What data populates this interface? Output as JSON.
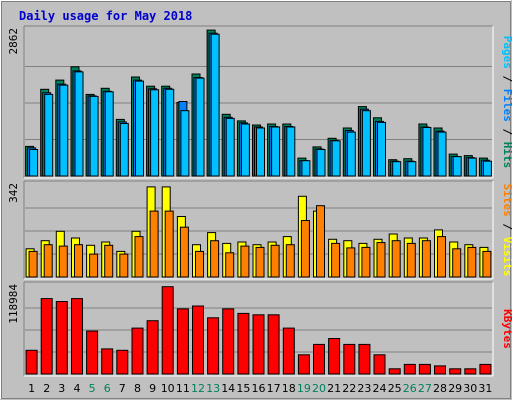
{
  "chart_data": {
    "type": "bar",
    "title": "Daily usage for May 2018",
    "categories": [
      "1",
      "2",
      "3",
      "4",
      "5",
      "6",
      "7",
      "8",
      "9",
      "10",
      "11",
      "12",
      "13",
      "14",
      "15",
      "16",
      "17",
      "18",
      "19",
      "20",
      "21",
      "22",
      "23",
      "24",
      "25",
      "26",
      "27",
      "28",
      "29",
      "30",
      "31"
    ],
    "weekend_days": [
      "5",
      "6",
      "12",
      "13",
      "19",
      "20",
      "26",
      "27"
    ],
    "colors": {
      "title": "#0000cc",
      "hits": "#00805c",
      "files": "#0080ff",
      "pages": "#00c0ff",
      "visits": "#ffff00",
      "sites": "#ff8000",
      "kbytes": "#ff0000",
      "weekday_label": "#000000",
      "weekend_label": "#00805c"
    },
    "panels": [
      {
        "id": "hits-files-pages",
        "max_label": "2862",
        "ymax": 2862,
        "side_label_parts": [
          {
            "text": "Pages",
            "color": "#00c0ff"
          },
          {
            "text": " / ",
            "color": "#000000"
          },
          {
            "text": "Files",
            "color": "#0080ff"
          },
          {
            "text": " / ",
            "color": "#000000"
          },
          {
            "text": "Hits",
            "color": "#00805c"
          }
        ],
        "series": [
          {
            "name": "Hits",
            "color": "#00805c",
            "values": [
              580,
              1700,
              1880,
              2140,
              1600,
              1720,
              1110,
              1940,
              1760,
              1760,
              1440,
              2000,
              2860,
              1210,
              1080,
              1000,
              1020,
              1020,
              350,
              570,
              740,
              940,
              1360,
              1140,
              320,
              340,
              1020,
              940,
              430,
              400,
              350
            ]
          },
          {
            "name": "Files",
            "color": "#0080ff",
            "values": [
              550,
              1630,
              1800,
              2060,
              1570,
              1660,
              1060,
              1880,
              1710,
              1720,
              1460,
              1930,
              2800,
              1150,
              1040,
              960,
              970,
              970,
              300,
              530,
              700,
              890,
              1310,
              1070,
              290,
              290,
              960,
              880,
              380,
              360,
              310
            ]
          },
          {
            "name": "Pages",
            "color": "#00c0ff",
            "values": [
              520,
              1600,
              1780,
              2040,
              1560,
              1650,
              1030,
              1860,
              1690,
              1700,
              1280,
              1920,
              2780,
              1130,
              1020,
              940,
              960,
              960,
              300,
              520,
              690,
              860,
              1280,
              1050,
              280,
              280,
              950,
              860,
              380,
              350,
              290
            ]
          }
        ]
      },
      {
        "id": "visits-sites",
        "max_label": "342",
        "ymax": 342,
        "side_label_parts": [
          {
            "text": "Sites",
            "color": "#ff8000"
          },
          {
            "text": " / ",
            "color": "#000000"
          },
          {
            "text": "Visits",
            "color": "#ffff00"
          }
        ],
        "series": [
          {
            "name": "Visits",
            "color": "#ffff00",
            "values": [
              105,
              135,
              170,
              145,
              118,
              130,
              95,
              170,
              335,
              335,
              225,
              120,
              165,
              125,
              130,
              120,
              130,
              150,
              300,
              245,
              140,
              135,
              125,
              140,
              160,
              145,
              145,
              175,
              130,
              120,
              110
            ]
          },
          {
            "name": "Sites",
            "color": "#ff8000",
            "values": [
              95,
              120,
              115,
              120,
              85,
              118,
              85,
              150,
              245,
              245,
              185,
              95,
              135,
              90,
              115,
              110,
              118,
              120,
              210,
              265,
              125,
              108,
              110,
              128,
              135,
              125,
              135,
              150,
              105,
              110,
              95
            ]
          }
        ]
      },
      {
        "id": "kbytes",
        "max_label": "118984",
        "ymax": 118984,
        "side_label_parts": [
          {
            "text": "KBytes",
            "color": "#ff0000"
          }
        ],
        "series": [
          {
            "name": "KBytes",
            "color": "#ff0000",
            "values": [
              32000,
              102000,
              98000,
              102000,
              58000,
              34000,
              32000,
              62000,
              72000,
              118000,
              88000,
              92000,
              76000,
              88000,
              82000,
              80000,
              80000,
              62000,
              26000,
              40000,
              48000,
              40000,
              40000,
              26000,
              7000,
              13000,
              13000,
              11000,
              7000,
              7000,
              13000
            ]
          }
        ]
      }
    ]
  }
}
